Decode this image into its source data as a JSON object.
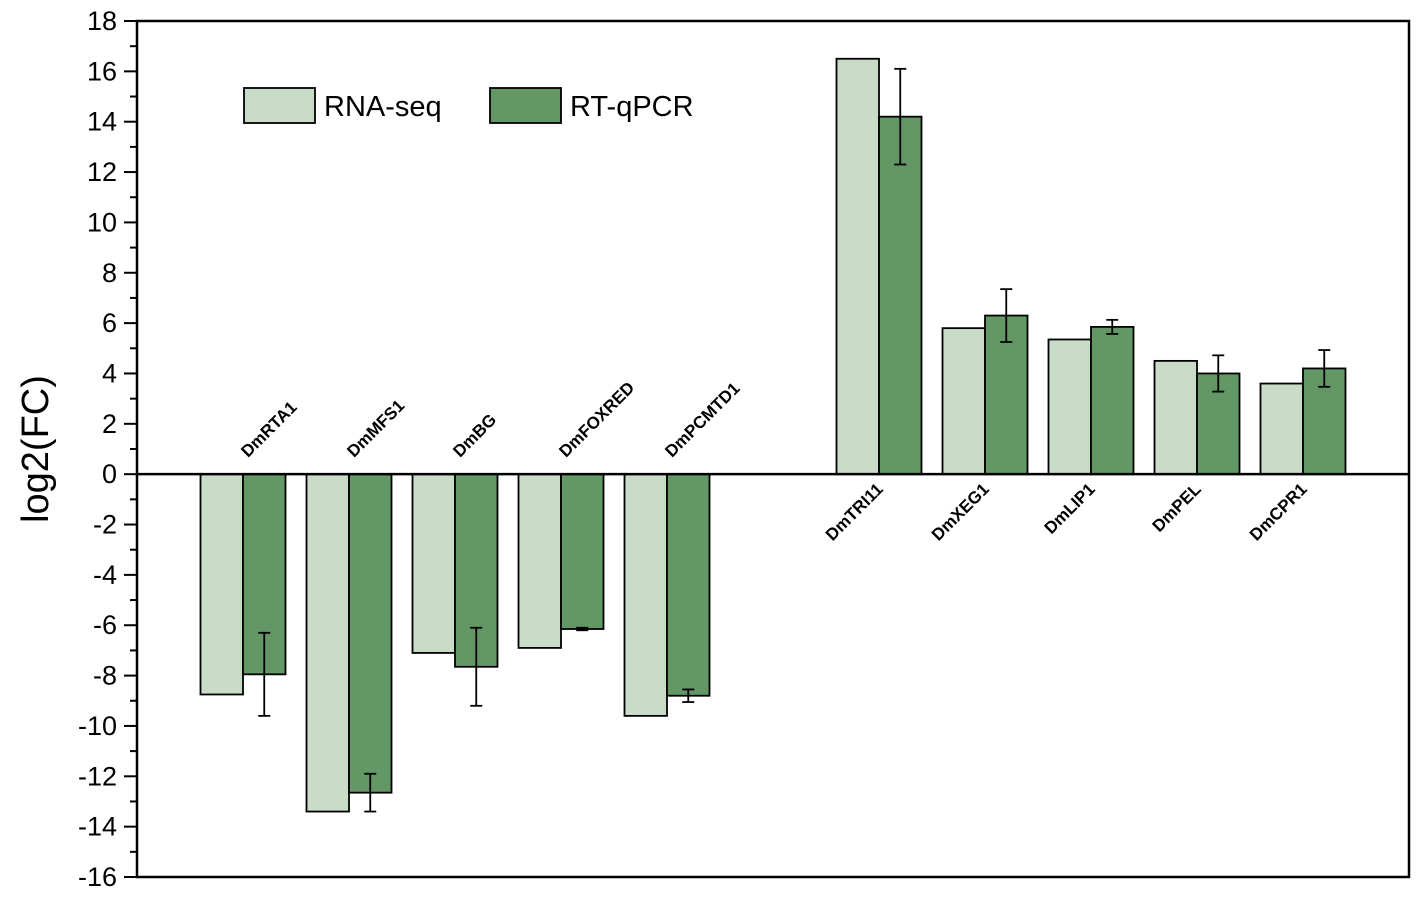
{
  "chart_data": {
    "type": "bar",
    "title": "",
    "xlabel": "",
    "ylabel": "log2(FC)",
    "ylim": [
      -16,
      18
    ],
    "ytick_step": 2,
    "categories": [
      "DmRTA1",
      "DmMFS1",
      "DmBG",
      "DmFOXRED",
      "DmPCMTD1",
      "DmTRI11",
      "DmXEG1",
      "DmLIP1",
      "DmPEL",
      "DmCPR1"
    ],
    "series": [
      {
        "name": "RNA-seq",
        "color": "#c8dcc8",
        "values": [
          -8.75,
          -13.4,
          -7.1,
          -6.9,
          -9.6,
          16.5,
          5.8,
          5.35,
          4.5,
          3.6
        ]
      },
      {
        "name": "RT-qPCR",
        "color": "#639766",
        "values": [
          -7.95,
          -12.65,
          -7.65,
          -6.15,
          -8.8,
          14.2,
          6.3,
          5.85,
          4.0,
          4.2
        ],
        "errors": [
          1.65,
          0.75,
          1.55,
          0.05,
          0.25,
          1.9,
          1.05,
          0.28,
          0.72,
          0.73
        ]
      }
    ],
    "legend_position": "top-left",
    "grid": false
  }
}
